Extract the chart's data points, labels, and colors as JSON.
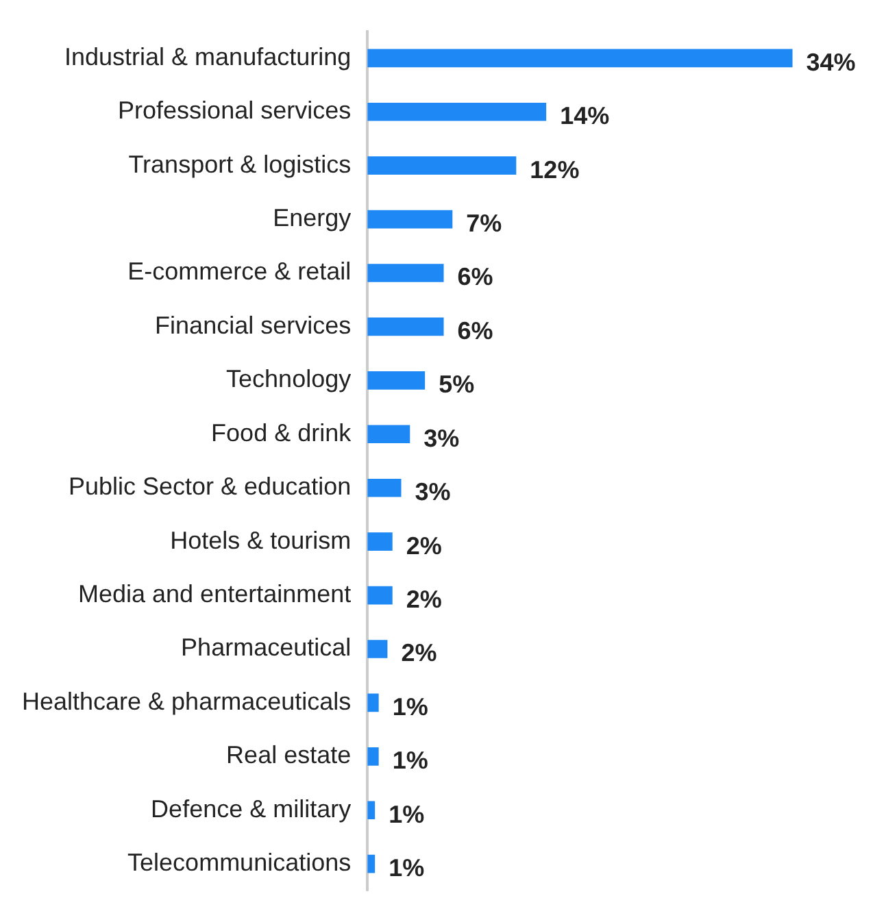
{
  "chart_data": {
    "type": "bar",
    "orientation": "horizontal",
    "categories": [
      "Industrial & manufacturing",
      "Professional services",
      "Transport & logistics",
      "Energy",
      "E-commerce & retail",
      "Financial services",
      "Technology",
      "Food & drink",
      "Public Sector & education",
      "Hotels & tourism",
      "Media and entertainment",
      "Pharmaceutical",
      "Healthcare & pharmaceuticals",
      "Real estate",
      "Defence & military",
      "Telecommunications"
    ],
    "values": [
      34,
      14.3,
      11.9,
      6.8,
      6.1,
      6.1,
      4.6,
      3.4,
      2.7,
      2,
      2,
      1.6,
      0.9,
      0.9,
      0.6,
      0.6
    ],
    "value_labels": [
      "34%",
      "14%",
      "12%",
      "7%",
      "6%",
      "6%",
      "5%",
      "3%",
      "3%",
      "2%",
      "2%",
      "2%",
      "1%",
      "1%",
      "1%",
      "1%"
    ],
    "color": "#1e88f5",
    "legend": false
  }
}
